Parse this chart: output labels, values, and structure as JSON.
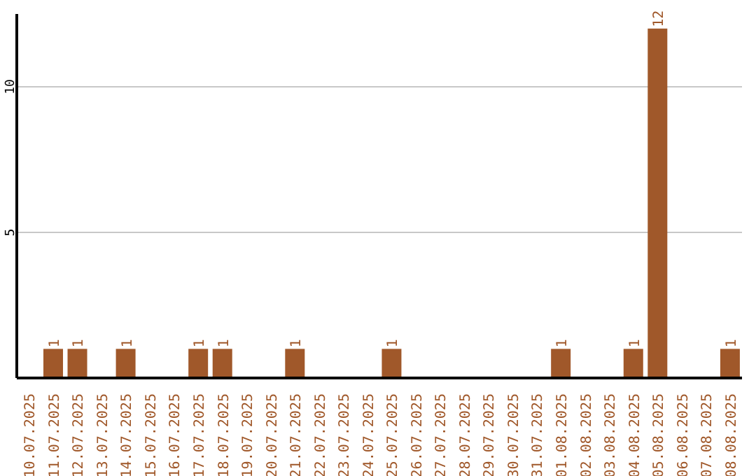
{
  "chart_data": {
    "type": "bar",
    "categories": [
      "10.07.2025",
      "11.07.2025",
      "12.07.2025",
      "13.07.2025",
      "14.07.2025",
      "15.07.2025",
      "16.07.2025",
      "17.07.2025",
      "18.07.2025",
      "19.07.2025",
      "20.07.2025",
      "21.07.2025",
      "22.07.2025",
      "23.07.2025",
      "24.07.2025",
      "25.07.2025",
      "26.07.2025",
      "27.07.2025",
      "28.07.2025",
      "29.07.2025",
      "30.07.2025",
      "31.07.2025",
      "01.08.2025",
      "02.08.2025",
      "03.08.2025",
      "04.08.2025",
      "05.08.2025",
      "06.08.2025",
      "07.08.2025",
      "08.08.2025"
    ],
    "values": [
      0,
      1,
      1,
      0,
      1,
      0,
      0,
      1,
      1,
      0,
      0,
      1,
      0,
      0,
      0,
      1,
      0,
      0,
      0,
      0,
      0,
      0,
      1,
      0,
      0,
      1,
      12,
      0,
      0,
      1
    ],
    "value_labels": [
      null,
      "1",
      "1",
      null,
      "1",
      null,
      null,
      "1",
      "1",
      null,
      null,
      "1",
      null,
      null,
      null,
      "1",
      null,
      null,
      null,
      null,
      null,
      null,
      "1",
      null,
      null,
      "1",
      "12",
      null,
      null,
      "1"
    ],
    "color": "#a0582a",
    "ylim": [
      0,
      12.5
    ],
    "yticks": [
      5,
      10
    ],
    "grid": "y"
  }
}
